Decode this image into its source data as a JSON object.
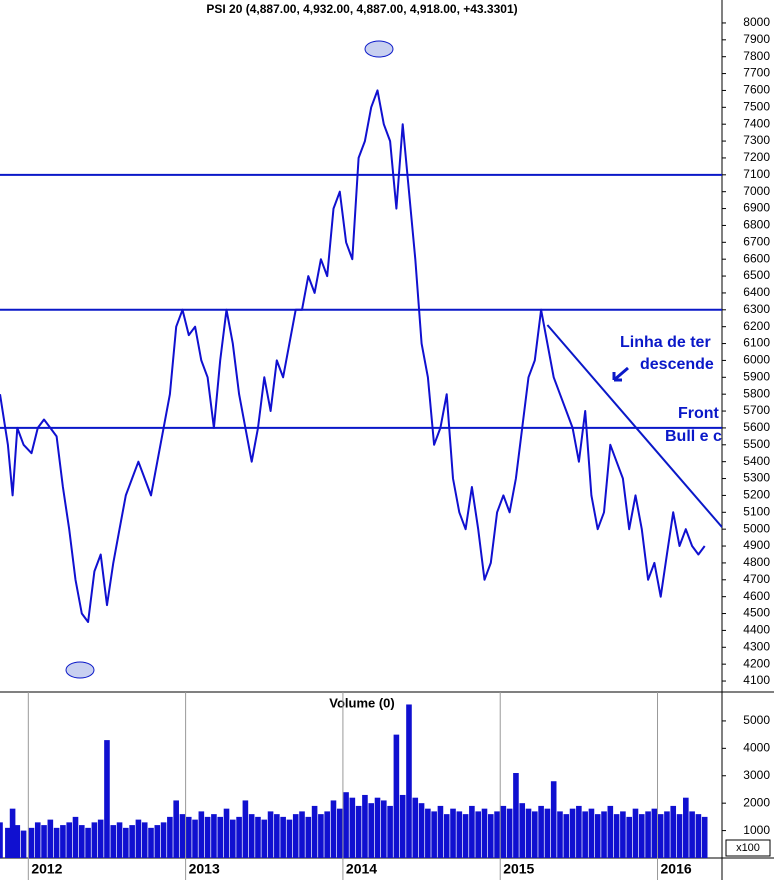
{
  "chart_data": {
    "type": "line",
    "title": "PSI 20 (4,887.00, 4,932.00, 4,887.00, 4,918.00, +43.3301)",
    "x": [
      2011.82,
      2011.87,
      2011.9,
      2011.93,
      2011.97,
      2012.02,
      2012.06,
      2012.1,
      2012.14,
      2012.18,
      2012.22,
      2012.26,
      2012.3,
      2012.34,
      2012.38,
      2012.42,
      2012.46,
      2012.5,
      2012.54,
      2012.58,
      2012.62,
      2012.66,
      2012.7,
      2012.74,
      2012.78,
      2012.82,
      2012.86,
      2012.9,
      2012.94,
      2012.98,
      2013.02,
      2013.06,
      2013.1,
      2013.14,
      2013.18,
      2013.22,
      2013.26,
      2013.3,
      2013.34,
      2013.38,
      2013.42,
      2013.46,
      2013.5,
      2013.54,
      2013.58,
      2013.62,
      2013.66,
      2013.7,
      2013.74,
      2013.78,
      2013.82,
      2013.86,
      2013.9,
      2013.94,
      2013.98,
      2014.02,
      2014.06,
      2014.1,
      2014.14,
      2014.18,
      2014.22,
      2014.26,
      2014.3,
      2014.34,
      2014.38,
      2014.42,
      2014.46,
      2014.5,
      2014.54,
      2014.58,
      2014.62,
      2014.66,
      2014.7,
      2014.74,
      2014.78,
      2014.82,
      2014.86,
      2014.9,
      2014.94,
      2014.98,
      2015.02,
      2015.06,
      2015.1,
      2015.14,
      2015.18,
      2015.22,
      2015.26,
      2015.3,
      2015.34,
      2015.38,
      2015.42,
      2015.46,
      2015.5,
      2015.54,
      2015.58,
      2015.62,
      2015.66,
      2015.7,
      2015.74,
      2015.78,
      2015.82,
      2015.86,
      2015.9,
      2015.94,
      2015.98,
      2016.02,
      2016.06,
      2016.1,
      2016.14,
      2016.18,
      2016.22,
      2016.26,
      2016.3
    ],
    "series": [
      {
        "color": "#1010d0",
        "values": [
          5800,
          5500,
          5200,
          5600,
          5500,
          5450,
          5600,
          5650,
          5600,
          5550,
          5250,
          5000,
          4700,
          4500,
          4450,
          4750,
          4850,
          4550,
          4800,
          5000,
          5200,
          5300,
          5400,
          5300,
          5200,
          5400,
          5600,
          5800,
          6200,
          6300,
          6150,
          6200,
          6000,
          5900,
          5600,
          6000,
          6300,
          6100,
          5800,
          5600,
          5400,
          5600,
          5900,
          5700,
          6000,
          5900,
          6100,
          6300,
          6300,
          6500,
          6400,
          6600,
          6500,
          6900,
          7000,
          6700,
          6600,
          7200,
          7300,
          7500,
          7600,
          7400,
          7300,
          6900,
          7400,
          7000,
          6600,
          6100,
          5900,
          5500,
          5600,
          5800,
          5300,
          5100,
          5000,
          5250,
          5000,
          4700,
          4800,
          5100,
          5200,
          5100,
          5300,
          5600,
          5900,
          6000,
          6300,
          6100,
          5900,
          5800,
          5700,
          5600,
          5400,
          5700,
          5200,
          5000,
          5100,
          5500,
          5400,
          5300,
          5000,
          5200,
          5000,
          4700,
          4800,
          4600,
          4850,
          5100,
          4900,
          5000,
          4900,
          4850,
          4900
        ]
      }
    ],
    "xlim": [
      2011.82,
      2016.41
    ],
    "xticks": [
      2012,
      2013,
      2014,
      2015,
      2016
    ],
    "ylim": [
      4035,
      8136
    ],
    "yticks": [
      4100,
      4200,
      4300,
      4400,
      4500,
      4600,
      4700,
      4800,
      4900,
      5000,
      5100,
      5200,
      5300,
      5400,
      5500,
      5600,
      5700,
      5800,
      5900,
      6000,
      6100,
      6200,
      6300,
      6400,
      6500,
      6600,
      6700,
      6800,
      6900,
      7000,
      7100,
      7200,
      7300,
      7400,
      7500,
      7600,
      7700,
      7800,
      7900,
      8000
    ],
    "reference_lines": [
      7100,
      6300,
      5600
    ],
    "trendline": {
      "x": [
        2015.3,
        2016.41
      ],
      "y": [
        6210,
        5012
      ]
    },
    "annotations": [
      "Linha de ter",
      "descende",
      "Front",
      "Bull e c"
    ],
    "volume": {
      "title": "Volume (0)",
      "unit_label": "x100",
      "ylim": [
        0,
        6055
      ],
      "yticks": [
        1000,
        2000,
        3000,
        4000,
        5000
      ],
      "values": [
        1300,
        1100,
        1800,
        1200,
        1000,
        1100,
        1300,
        1200,
        1400,
        1100,
        1200,
        1300,
        1500,
        1200,
        1100,
        1300,
        1400,
        4300,
        1200,
        1300,
        1100,
        1200,
        1400,
        1300,
        1100,
        1200,
        1300,
        1500,
        2100,
        1600,
        1500,
        1400,
        1700,
        1500,
        1600,
        1500,
        1800,
        1400,
        1500,
        2100,
        1600,
        1500,
        1400,
        1700,
        1600,
        1500,
        1400,
        1600,
        1700,
        1500,
        1900,
        1600,
        1700,
        2100,
        1800,
        2400,
        2200,
        1900,
        2300,
        2000,
        2200,
        2100,
        1900,
        4500,
        2300,
        5600,
        2200,
        2000,
        1800,
        1700,
        1900,
        1600,
        1800,
        1700,
        1600,
        1900,
        1700,
        1800,
        1600,
        1700,
        1900,
        1800,
        3100,
        2000,
        1800,
        1700,
        1900,
        1800,
        2800,
        1700,
        1600,
        1800,
        1900,
        1700,
        1800,
        1600,
        1700,
        1900,
        1600,
        1700,
        1500,
        1800,
        1600,
        1700,
        1800,
        1600,
        1700,
        1900,
        1600,
        2200,
        1700,
        1600,
        1500
      ]
    }
  }
}
